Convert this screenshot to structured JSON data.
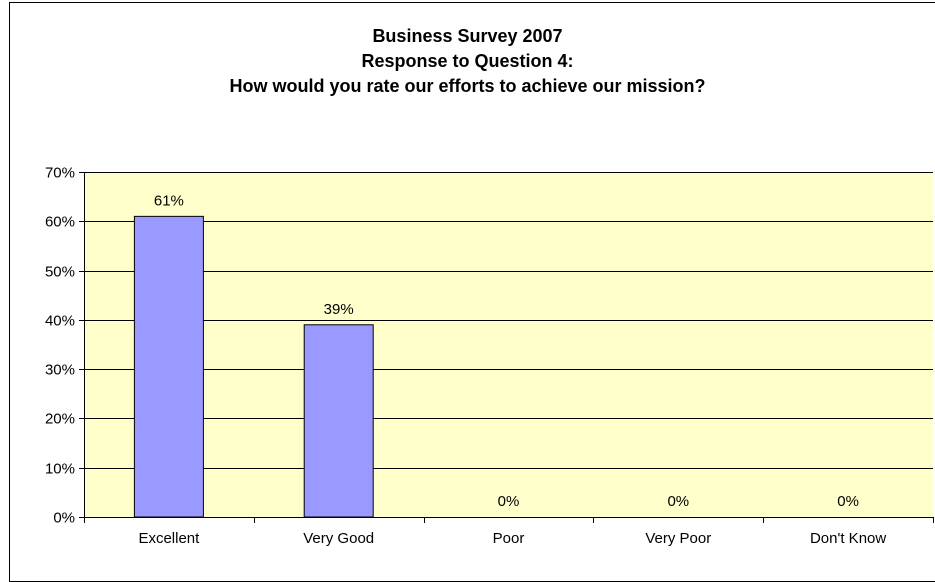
{
  "chart_data": {
    "type": "bar",
    "title": [
      "Business Survey 2007",
      "Response to Question 4:",
      "How would you rate our efforts to achieve our mission?"
    ],
    "categories": [
      "Excellent",
      "Very Good",
      "Poor",
      "Very Poor",
      "Don't Know"
    ],
    "values": [
      61,
      39,
      0,
      0,
      0
    ],
    "data_labels": [
      "61%",
      "39%",
      "0%",
      "0%",
      "0%"
    ],
    "yticks": [
      "0%",
      "10%",
      "20%",
      "30%",
      "40%",
      "50%",
      "60%",
      "70%"
    ],
    "ylim": [
      0,
      70
    ],
    "grid": true,
    "legend": "none",
    "colors": {
      "bar_fill": "#9999ff",
      "plot_background": "#ffffcc",
      "gridline": "#000000"
    }
  }
}
